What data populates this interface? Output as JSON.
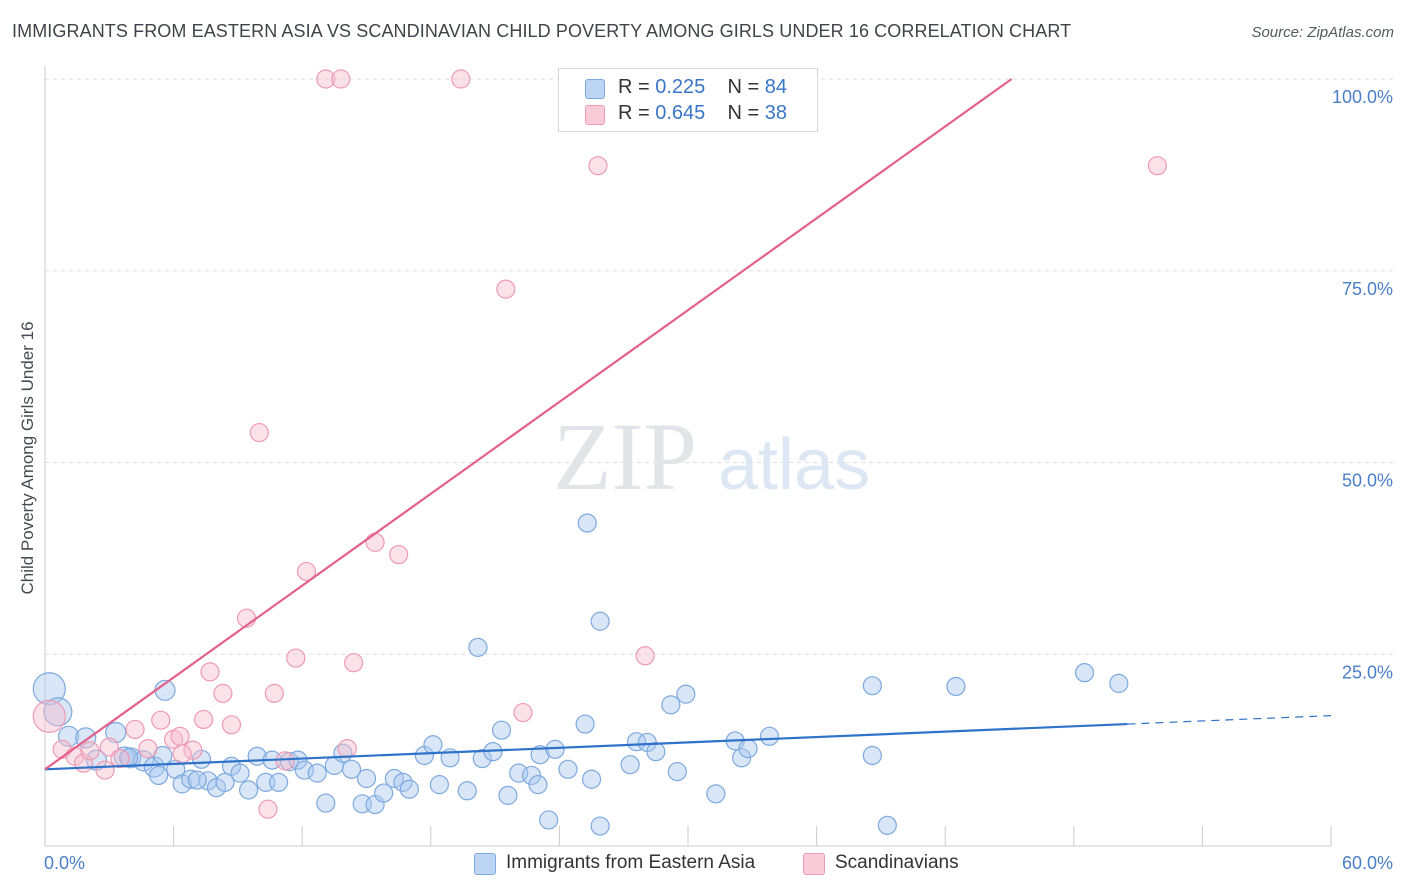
{
  "title": "IMMIGRANTS FROM EASTERN ASIA VS SCANDINAVIAN CHILD POVERTY AMONG GIRLS UNDER 16 CORRELATION CHART",
  "source": "Source: ZipAtlas.com",
  "watermark": {
    "zip": "ZIP",
    "atlas": "atlas"
  },
  "legend": [
    {
      "r_label": "R =",
      "r_value": "0.225",
      "n_label": "N =",
      "n_value": "84"
    },
    {
      "r_label": "R =",
      "r_value": "0.645",
      "n_label": "N =",
      "n_value": "38"
    }
  ],
  "colors": {
    "blue_fill": "#a9c8ef",
    "blue_stroke": "#7ea9de",
    "blue_line": "#2f72c9",
    "pink_fill": "#f6bccd",
    "pink_stroke": "#ee9ab4",
    "pink_line": "#e26089",
    "grid": "#dddddd",
    "tick_text": "#4a7fc8"
  },
  "chart_data": {
    "type": "scatter",
    "title": "IMMIGRANTS FROM EASTERN ASIA VS SCANDINAVIAN CHILD POVERTY AMONG GIRLS UNDER 16 CORRELATION CHART",
    "xlabel": "",
    "ylabel": "Child Poverty Among Girls Under 16",
    "xlim": [
      0,
      60
    ],
    "ylim": [
      0,
      100
    ],
    "x_tick_labels": [
      "0.0%",
      "60.0%"
    ],
    "y_ticks": [
      25,
      50,
      75,
      100
    ],
    "y_tick_labels": [
      "25.0%",
      "50.0%",
      "75.0%",
      "100.0%"
    ],
    "grid": true,
    "legend_position": "top-center",
    "series": [
      {
        "name": "Immigrants from Eastern Asia",
        "r": 0.225,
        "n": 84,
        "trend": {
          "x": [
            0,
            50.5
          ],
          "y": [
            10.0,
            15.9
          ],
          "dashed_to_x": 60,
          "dashed_to_y": 17.0
        },
        "points": [
          [
            0.2,
            20.5,
            16
          ],
          [
            0.6,
            17.5,
            14
          ],
          [
            1.1,
            14.3,
            10
          ],
          [
            1.9,
            14.1,
            10
          ],
          [
            2.4,
            11.2,
            10
          ],
          [
            3.3,
            14.8,
            10
          ],
          [
            3.7,
            11.6,
            10
          ],
          [
            4.0,
            11.5,
            10
          ],
          [
            4.6,
            11.1,
            10
          ],
          [
            5.1,
            10.3,
            10
          ],
          [
            5.3,
            9.2,
            9
          ],
          [
            5.6,
            20.3,
            10
          ],
          [
            6.1,
            10.0,
            9
          ],
          [
            6.4,
            8.1,
            9
          ],
          [
            6.8,
            8.7,
            9
          ],
          [
            7.3,
            11.3,
            9
          ],
          [
            7.6,
            8.5,
            9
          ],
          [
            8.0,
            7.6,
            9
          ],
          [
            8.4,
            8.3,
            9
          ],
          [
            8.7,
            10.4,
            9
          ],
          [
            9.1,
            9.5,
            9
          ],
          [
            9.5,
            7.3,
            9
          ],
          [
            9.9,
            11.7,
            9
          ],
          [
            10.3,
            8.3,
            9
          ],
          [
            10.6,
            11.2,
            9
          ],
          [
            10.9,
            8.3,
            9
          ],
          [
            11.4,
            11.0,
            9
          ],
          [
            11.8,
            11.2,
            9
          ],
          [
            12.1,
            9.9,
            9
          ],
          [
            12.7,
            9.5,
            9
          ],
          [
            13.1,
            5.6,
            9
          ],
          [
            13.5,
            10.5,
            9
          ],
          [
            13.9,
            12.1,
            9
          ],
          [
            14.3,
            10.0,
            9
          ],
          [
            14.8,
            5.5,
            9
          ],
          [
            15.0,
            8.8,
            9
          ],
          [
            15.4,
            5.4,
            9
          ],
          [
            15.8,
            6.9,
            9
          ],
          [
            16.3,
            8.8,
            9
          ],
          [
            16.7,
            8.3,
            9
          ],
          [
            17.0,
            7.4,
            9
          ],
          [
            17.7,
            11.8,
            9
          ],
          [
            18.1,
            13.2,
            9
          ],
          [
            18.4,
            8.0,
            9
          ],
          [
            18.9,
            11.5,
            9
          ],
          [
            19.7,
            7.2,
            9
          ],
          [
            20.2,
            25.9,
            9
          ],
          [
            20.4,
            11.4,
            9
          ],
          [
            20.9,
            12.3,
            9
          ],
          [
            21.3,
            15.1,
            9
          ],
          [
            21.6,
            6.6,
            9
          ],
          [
            22.1,
            9.5,
            9
          ],
          [
            22.7,
            9.2,
            9
          ],
          [
            23.0,
            8.0,
            9
          ],
          [
            23.5,
            3.4,
            9
          ],
          [
            23.1,
            11.9,
            9
          ],
          [
            23.8,
            12.6,
            9
          ],
          [
            24.4,
            10.0,
            9
          ],
          [
            25.2,
            15.9,
            9
          ],
          [
            25.5,
            8.7,
            9
          ],
          [
            25.3,
            42.1,
            9
          ],
          [
            25.9,
            29.3,
            9
          ],
          [
            25.9,
            2.6,
            9
          ],
          [
            27.3,
            10.6,
            9
          ],
          [
            27.6,
            13.6,
            9
          ],
          [
            28.1,
            13.5,
            9
          ],
          [
            28.5,
            12.3,
            9
          ],
          [
            29.2,
            18.4,
            9
          ],
          [
            29.9,
            19.8,
            9
          ],
          [
            29.5,
            9.7,
            9
          ],
          [
            31.3,
            6.8,
            9
          ],
          [
            32.2,
            13.7,
            9
          ],
          [
            32.5,
            11.5,
            9
          ],
          [
            32.8,
            12.7,
            9
          ],
          [
            33.8,
            14.3,
            9
          ],
          [
            38.6,
            20.9,
            9
          ],
          [
            38.6,
            11.8,
            9
          ],
          [
            39.3,
            2.7,
            9
          ],
          [
            42.5,
            20.8,
            9
          ],
          [
            48.5,
            22.6,
            9
          ],
          [
            50.1,
            21.2,
            9
          ],
          [
            3.9,
            11.5,
            9
          ],
          [
            5.5,
            11.8,
            9
          ],
          [
            7.1,
            8.6,
            9
          ]
        ]
      },
      {
        "name": "Scandinavians",
        "r": 0.645,
        "n": 38,
        "trend": {
          "x": [
            0,
            45.1
          ],
          "y": [
            10.0,
            100.0
          ]
        },
        "points": [
          [
            0.2,
            16.9,
            16
          ],
          [
            0.8,
            12.6,
            9
          ],
          [
            1.4,
            11.7,
            9
          ],
          [
            1.8,
            10.8,
            9
          ],
          [
            2.8,
            9.9,
            9
          ],
          [
            3.0,
            12.9,
            9
          ],
          [
            3.5,
            11.4,
            9
          ],
          [
            4.2,
            15.2,
            9
          ],
          [
            4.8,
            12.7,
            9
          ],
          [
            5.4,
            16.4,
            9
          ],
          [
            6.0,
            13.9,
            9
          ],
          [
            6.3,
            14.3,
            9
          ],
          [
            6.9,
            12.5,
            9
          ],
          [
            7.4,
            16.5,
            9
          ],
          [
            7.7,
            22.7,
            9
          ],
          [
            8.3,
            19.9,
            9
          ],
          [
            8.7,
            15.8,
            9
          ],
          [
            9.4,
            29.7,
            9
          ],
          [
            10.0,
            53.9,
            9
          ],
          [
            10.4,
            4.8,
            9
          ],
          [
            10.7,
            19.9,
            9
          ],
          [
            11.2,
            11.1,
            9
          ],
          [
            11.7,
            24.5,
            9
          ],
          [
            12.2,
            35.8,
            9
          ],
          [
            13.1,
            100.0,
            9
          ],
          [
            13.8,
            100.0,
            9
          ],
          [
            14.1,
            12.7,
            9
          ],
          [
            14.4,
            23.9,
            9
          ],
          [
            15.4,
            39.6,
            9
          ],
          [
            16.5,
            38.0,
            9
          ],
          [
            19.4,
            100.0,
            9
          ],
          [
            21.5,
            72.6,
            9
          ],
          [
            22.3,
            17.4,
            9
          ],
          [
            25.8,
            88.7,
            9
          ],
          [
            28.0,
            24.8,
            9
          ],
          [
            51.9,
            88.7,
            9
          ],
          [
            2.1,
            12.4,
            9
          ],
          [
            6.4,
            12.0,
            9
          ]
        ]
      }
    ]
  }
}
